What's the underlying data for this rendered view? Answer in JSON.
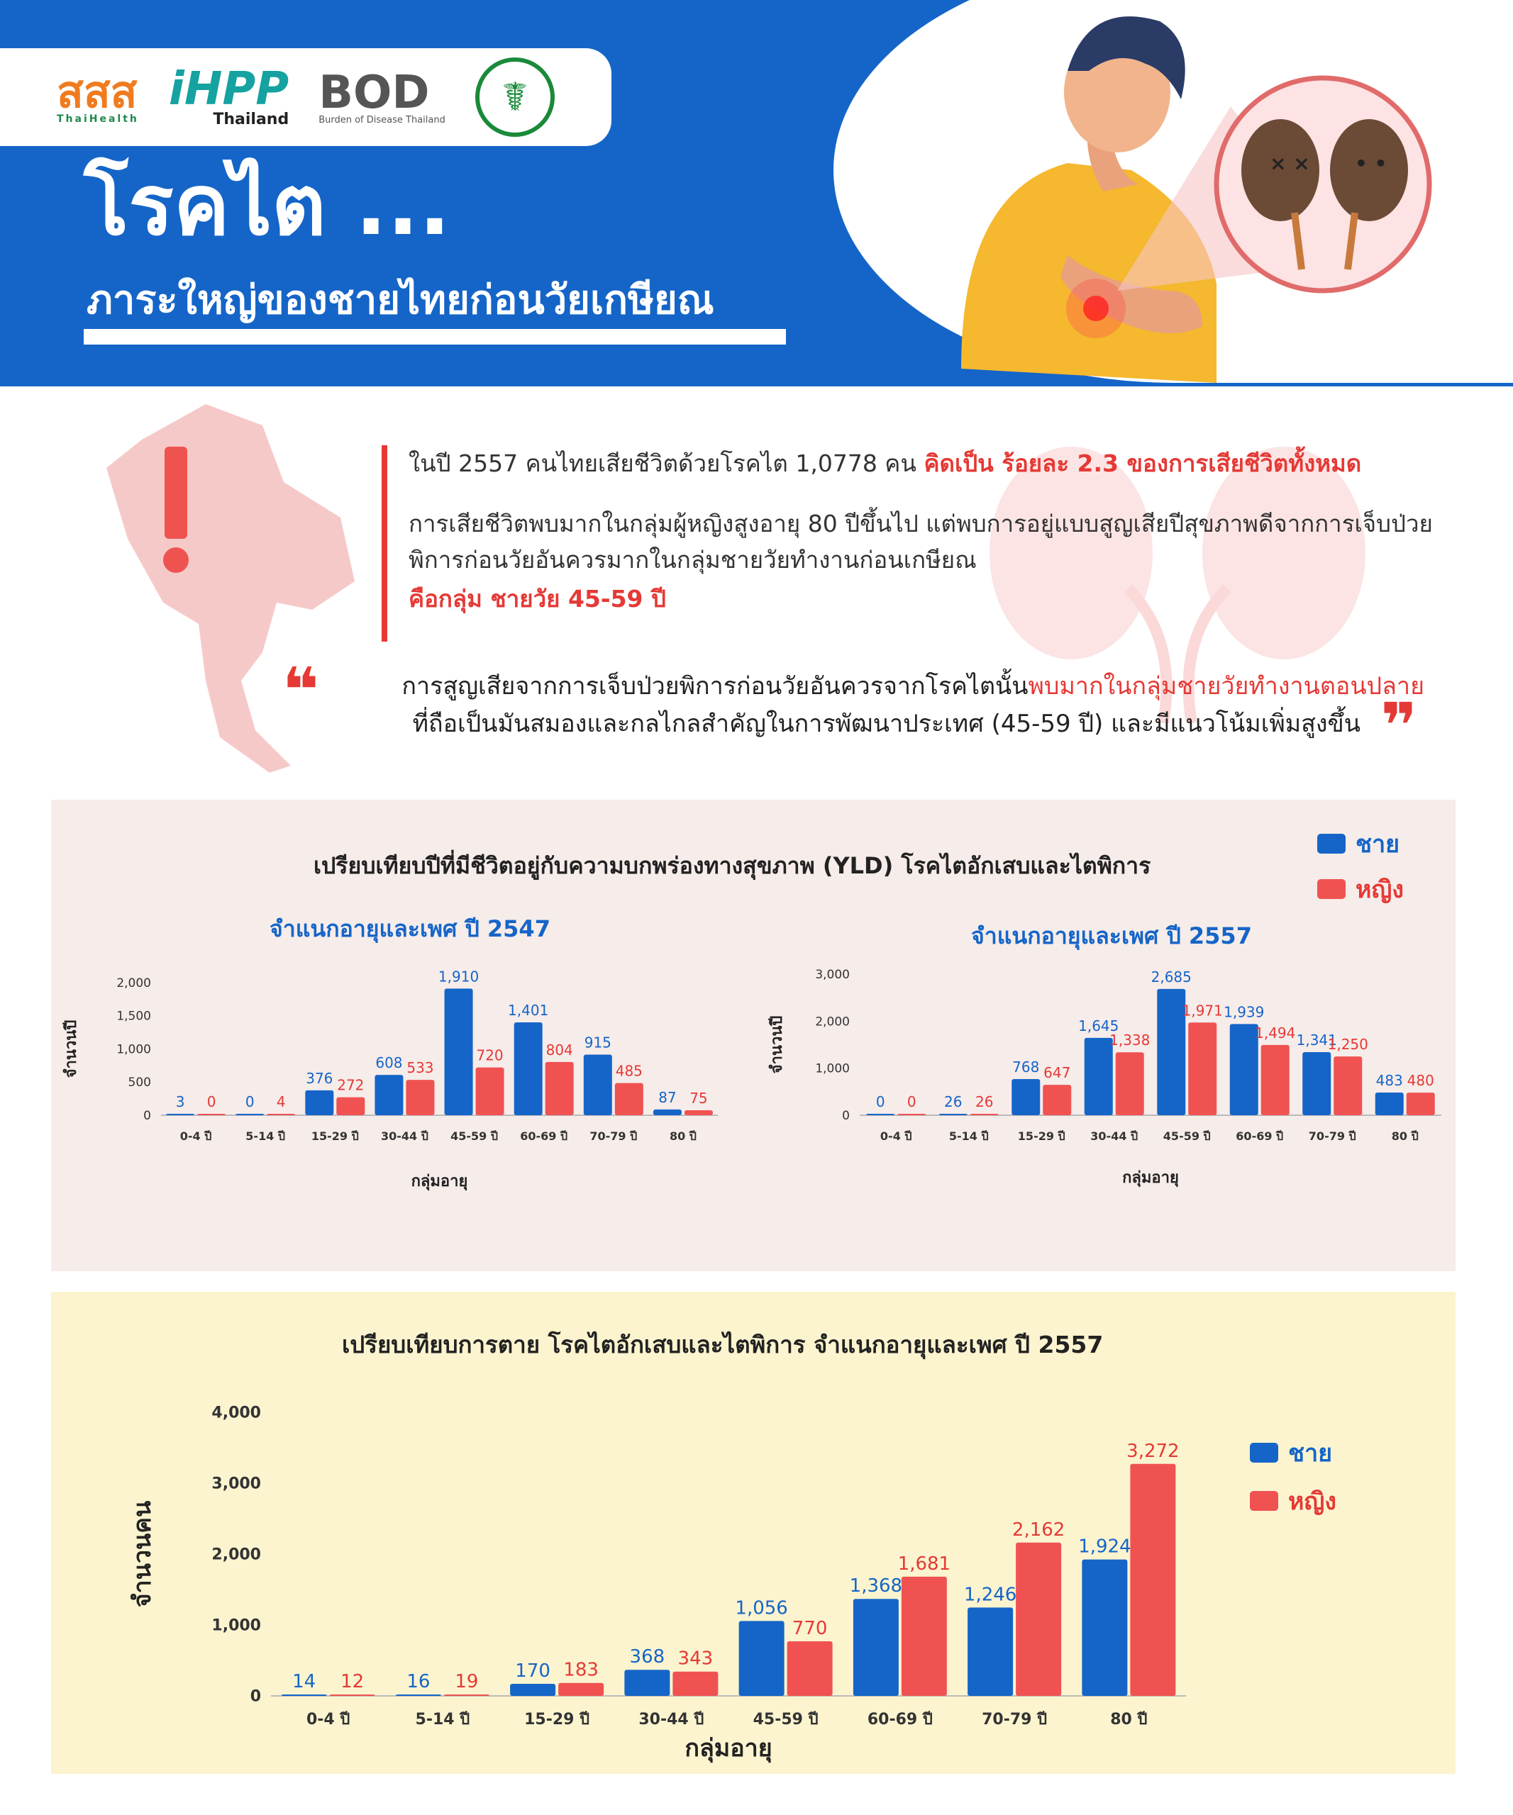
{
  "header": {
    "logos": {
      "thaihealth": "สสส",
      "thaihealth_en": "ThaiHealth",
      "ihpp": "iHPP",
      "ihpp_sub": "Thailand",
      "bod": "BOD",
      "bod_sub": "Burden of Disease Thailand"
    },
    "title": "โรคไต ...",
    "subtitle": "ภาระใหญ่ของชายไทยก่อนวัยเกษียณ"
  },
  "intro": {
    "line1_plain": "ในปี 2557  คนไทยเสียชีวิตด้วยโรคไต 1,0778 คน ",
    "line1_red": "คิดเป็น ร้อยละ 2.3 ของการเสียชีวิตทั้งหมด",
    "line2": "การเสียชีวิตพบมากในกลุ่มผู้หญิงสูงอายุ 80 ปีขึ้นไป แต่พบการอยู่แบบสูญเสียปีสุขภาพดีจากการเจ็บป่วยพิการก่อนวัยอันควรมากในกลุ่มชายวัยทำงานก่อนเกษียณ",
    "line3_red": "คือกลุ่ม ชายวัย 45-59 ปี"
  },
  "quote": {
    "part1": "การสูญเสียจากการเจ็บป่วยพิการก่อนวัยอันควรจากโรคไตนั้น",
    "part1_red": "พบมากในกลุ่มชายวัยทำงานตอนปลาย",
    "part2": "ที่ถือเป็นมันสมองและกลไกลสำคัญในการพัฒนาประเทศ (45-59 ปี)  และมีแนวโน้มเพิ่มสูงขึ้น",
    "open_mark": "❝",
    "close_mark": "❞"
  },
  "yld_section": {
    "title": "เปรียบเทียบปีที่มีชีวิตอยู่กับความบกพร่องทางสุขภาพ (YLD) โรคไตอักเสบและไตพิการ",
    "legend": {
      "male": "ชาย",
      "female": "หญิง"
    }
  },
  "death_section": {
    "legend": {
      "male": "ชาย",
      "female": "หญิง"
    }
  },
  "colors": {
    "blue": "#1565c8",
    "red": "#f05252",
    "male_label": "#1565c8",
    "female_label": "#e53935"
  },
  "chart_data": [
    {
      "type": "bar",
      "title": "จำแนกอายุและเพศ ปี 2547",
      "xlabel": "กลุ่มอายุ",
      "ylabel": "จำนวนปี",
      "ylim": [
        0,
        2000
      ],
      "yticks": [
        0,
        500,
        1000,
        1500,
        2000
      ],
      "ytick_labels": [
        "0",
        "500",
        "1,000",
        "1,500",
        "2,000"
      ],
      "categories": [
        "0-4 ปี",
        "5-14 ปี",
        "15-29 ปี",
        "30-44 ปี",
        "45-59 ปี",
        "60-69 ปี",
        "70-79 ปี",
        "80 ปี"
      ],
      "series": [
        {
          "name": "ชาย",
          "values": [
            3,
            0,
            376,
            608,
            1910,
            1401,
            915,
            87
          ],
          "labels": [
            "3",
            "0",
            "376",
            "608",
            "1,910",
            "1,401",
            "915",
            "87"
          ]
        },
        {
          "name": "หญิง",
          "values": [
            0,
            4,
            272,
            533,
            720,
            804,
            485,
            75
          ],
          "labels": [
            "0",
            "4",
            "272",
            "533",
            "720",
            "804",
            "485",
            "75"
          ]
        }
      ]
    },
    {
      "type": "bar",
      "title": "จำแนกอายุและเพศ ปี 2557",
      "xlabel": "กลุ่มอายุ",
      "ylabel": "จำนวนปี",
      "ylim": [
        0,
        3000
      ],
      "yticks": [
        0,
        1000,
        2000,
        3000
      ],
      "ytick_labels": [
        "0",
        "1,000",
        "2,000",
        "3,000"
      ],
      "categories": [
        "0-4 ปี",
        "5-14 ปี",
        "15-29 ปี",
        "30-44 ปี",
        "45-59 ปี",
        "60-69 ปี",
        "70-79 ปี",
        "80 ปี"
      ],
      "series": [
        {
          "name": "ชาย",
          "values": [
            0,
            26,
            768,
            1645,
            2685,
            1939,
            1341,
            483
          ],
          "labels": [
            "0",
            "26",
            "768",
            "1,645",
            "2,685",
            "1,939",
            "1,341",
            "483"
          ]
        },
        {
          "name": "หญิง",
          "values": [
            0,
            26,
            647,
            1338,
            1971,
            1494,
            1250,
            480
          ],
          "labels": [
            "0",
            "26",
            "647",
            "1,338",
            "1,971",
            "1,494",
            "1,250",
            "480"
          ]
        }
      ]
    },
    {
      "type": "bar",
      "title": "เปรียบเทียบการตาย โรคไตอักเสบและไตพิการ จำแนกอายุและเพศ ปี 2557",
      "xlabel": "กลุ่มอายุ",
      "ylabel": "จำนวนคน",
      "ylim": [
        0,
        4000
      ],
      "yticks": [
        0,
        1000,
        2000,
        3000,
        4000
      ],
      "ytick_labels": [
        "0",
        "1,000",
        "2,000",
        "3,000",
        "4,000"
      ],
      "categories": [
        "0-4 ปี",
        "5-14 ปี",
        "15-29 ปี",
        "30-44 ปี",
        "45-59 ปี",
        "60-69 ปี",
        "70-79 ปี",
        "80 ปี"
      ],
      "series": [
        {
          "name": "ชาย",
          "values": [
            14,
            16,
            170,
            368,
            1056,
            1368,
            1246,
            1924
          ],
          "labels": [
            "14",
            "16",
            "170",
            "368",
            "1,056",
            "1,368",
            "1,246",
            "1,924"
          ]
        },
        {
          "name": "หญิง",
          "values": [
            12,
            19,
            183,
            343,
            770,
            1681,
            2162,
            3272
          ],
          "labels": [
            "12",
            "19",
            "183",
            "343",
            "770",
            "1,681",
            "2,162",
            "3,272"
          ]
        }
      ]
    }
  ]
}
